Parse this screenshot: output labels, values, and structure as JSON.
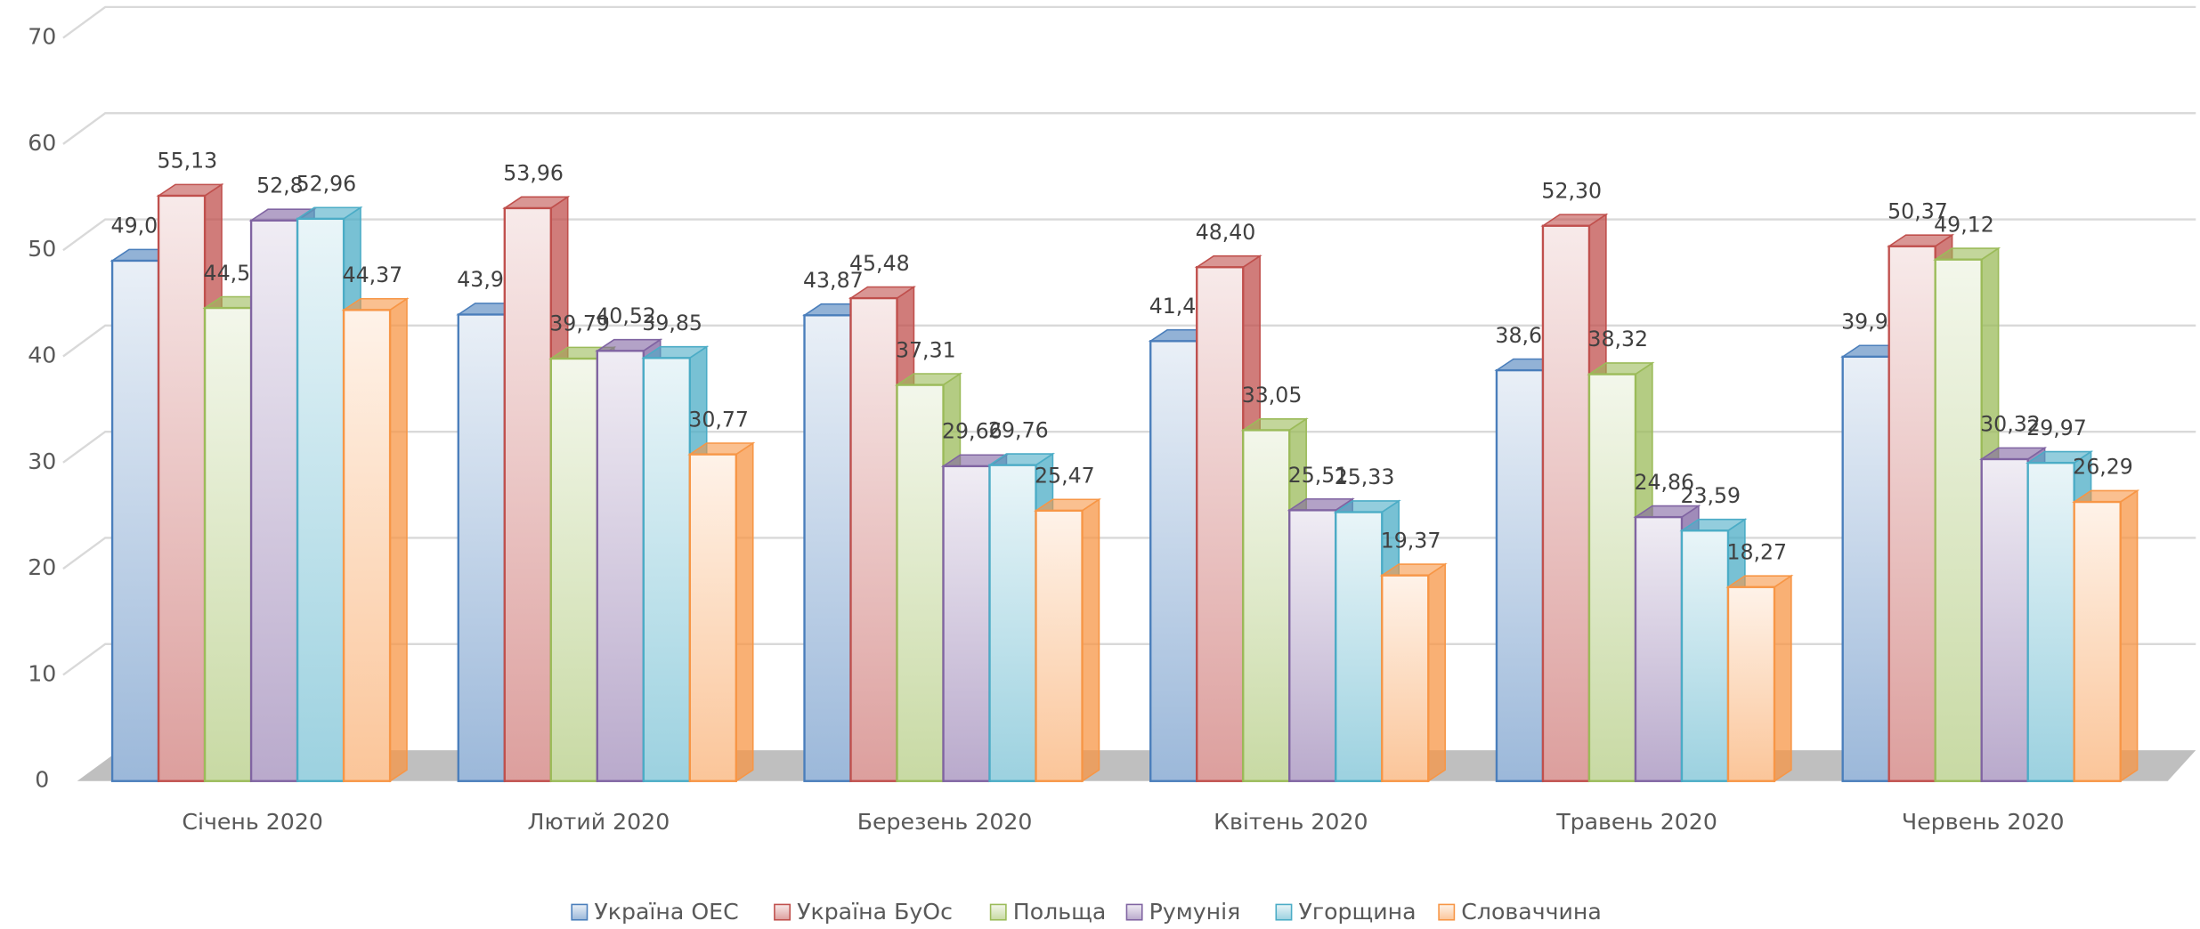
{
  "chart_data": {
    "type": "bar3d",
    "categories": [
      "Січень 2020",
      "Лютий 2020",
      "Березень 2020",
      "Квітень 2020",
      "Травень 2020",
      "Червень 2020"
    ],
    "series": [
      {
        "name": "Україна ОЕС",
        "color": "#4a7ebb",
        "values": [
          49.01,
          43.94,
          43.87,
          41.44,
          38.69,
          39.97
        ],
        "value_labels": [
          "49,01",
          "43,94",
          "43,87",
          "41,44",
          "38,69",
          "39,97"
        ]
      },
      {
        "name": "Україна БуОс",
        "color": "#c0504d",
        "values": [
          55.13,
          53.96,
          45.48,
          48.4,
          52.3,
          50.37
        ],
        "value_labels": [
          "55,13",
          "53,96",
          "45,48",
          "48,40",
          "52,30",
          "50,37"
        ]
      },
      {
        "name": "Польща",
        "color": "#9bbb59",
        "values": [
          44.56,
          39.79,
          37.31,
          33.05,
          38.32,
          49.12
        ],
        "value_labels": [
          "44,56",
          "39,79",
          "37,31",
          "33,05",
          "38,32",
          "49,12"
        ]
      },
      {
        "name": "Румунія",
        "color": "#8064a2",
        "values": [
          52.8,
          40.52,
          29.66,
          25.51,
          24.86,
          30.32
        ],
        "value_labels": [
          "52,8",
          "40,52",
          "29,66",
          "25,51",
          "24,86",
          "30,32"
        ]
      },
      {
        "name": "Угорщина",
        "color": "#4bacc6",
        "values": [
          52.96,
          39.85,
          29.76,
          25.33,
          23.59,
          29.97
        ],
        "value_labels": [
          "52,96",
          "39,85",
          "29,76",
          "25,33",
          "23,59",
          "29,97"
        ]
      },
      {
        "name": "Словаччина",
        "color": "#f79646",
        "values": [
          44.37,
          30.77,
          25.47,
          19.37,
          18.27,
          26.29
        ],
        "value_labels": [
          "44,37",
          "30,77",
          "25,47",
          "19,37",
          "18,27",
          "26,29"
        ]
      }
    ],
    "ylim": [
      0,
      70
    ],
    "yticks": [
      0,
      10,
      20,
      30,
      40,
      50,
      60,
      70
    ],
    "grid": true,
    "legend": "bottom"
  }
}
